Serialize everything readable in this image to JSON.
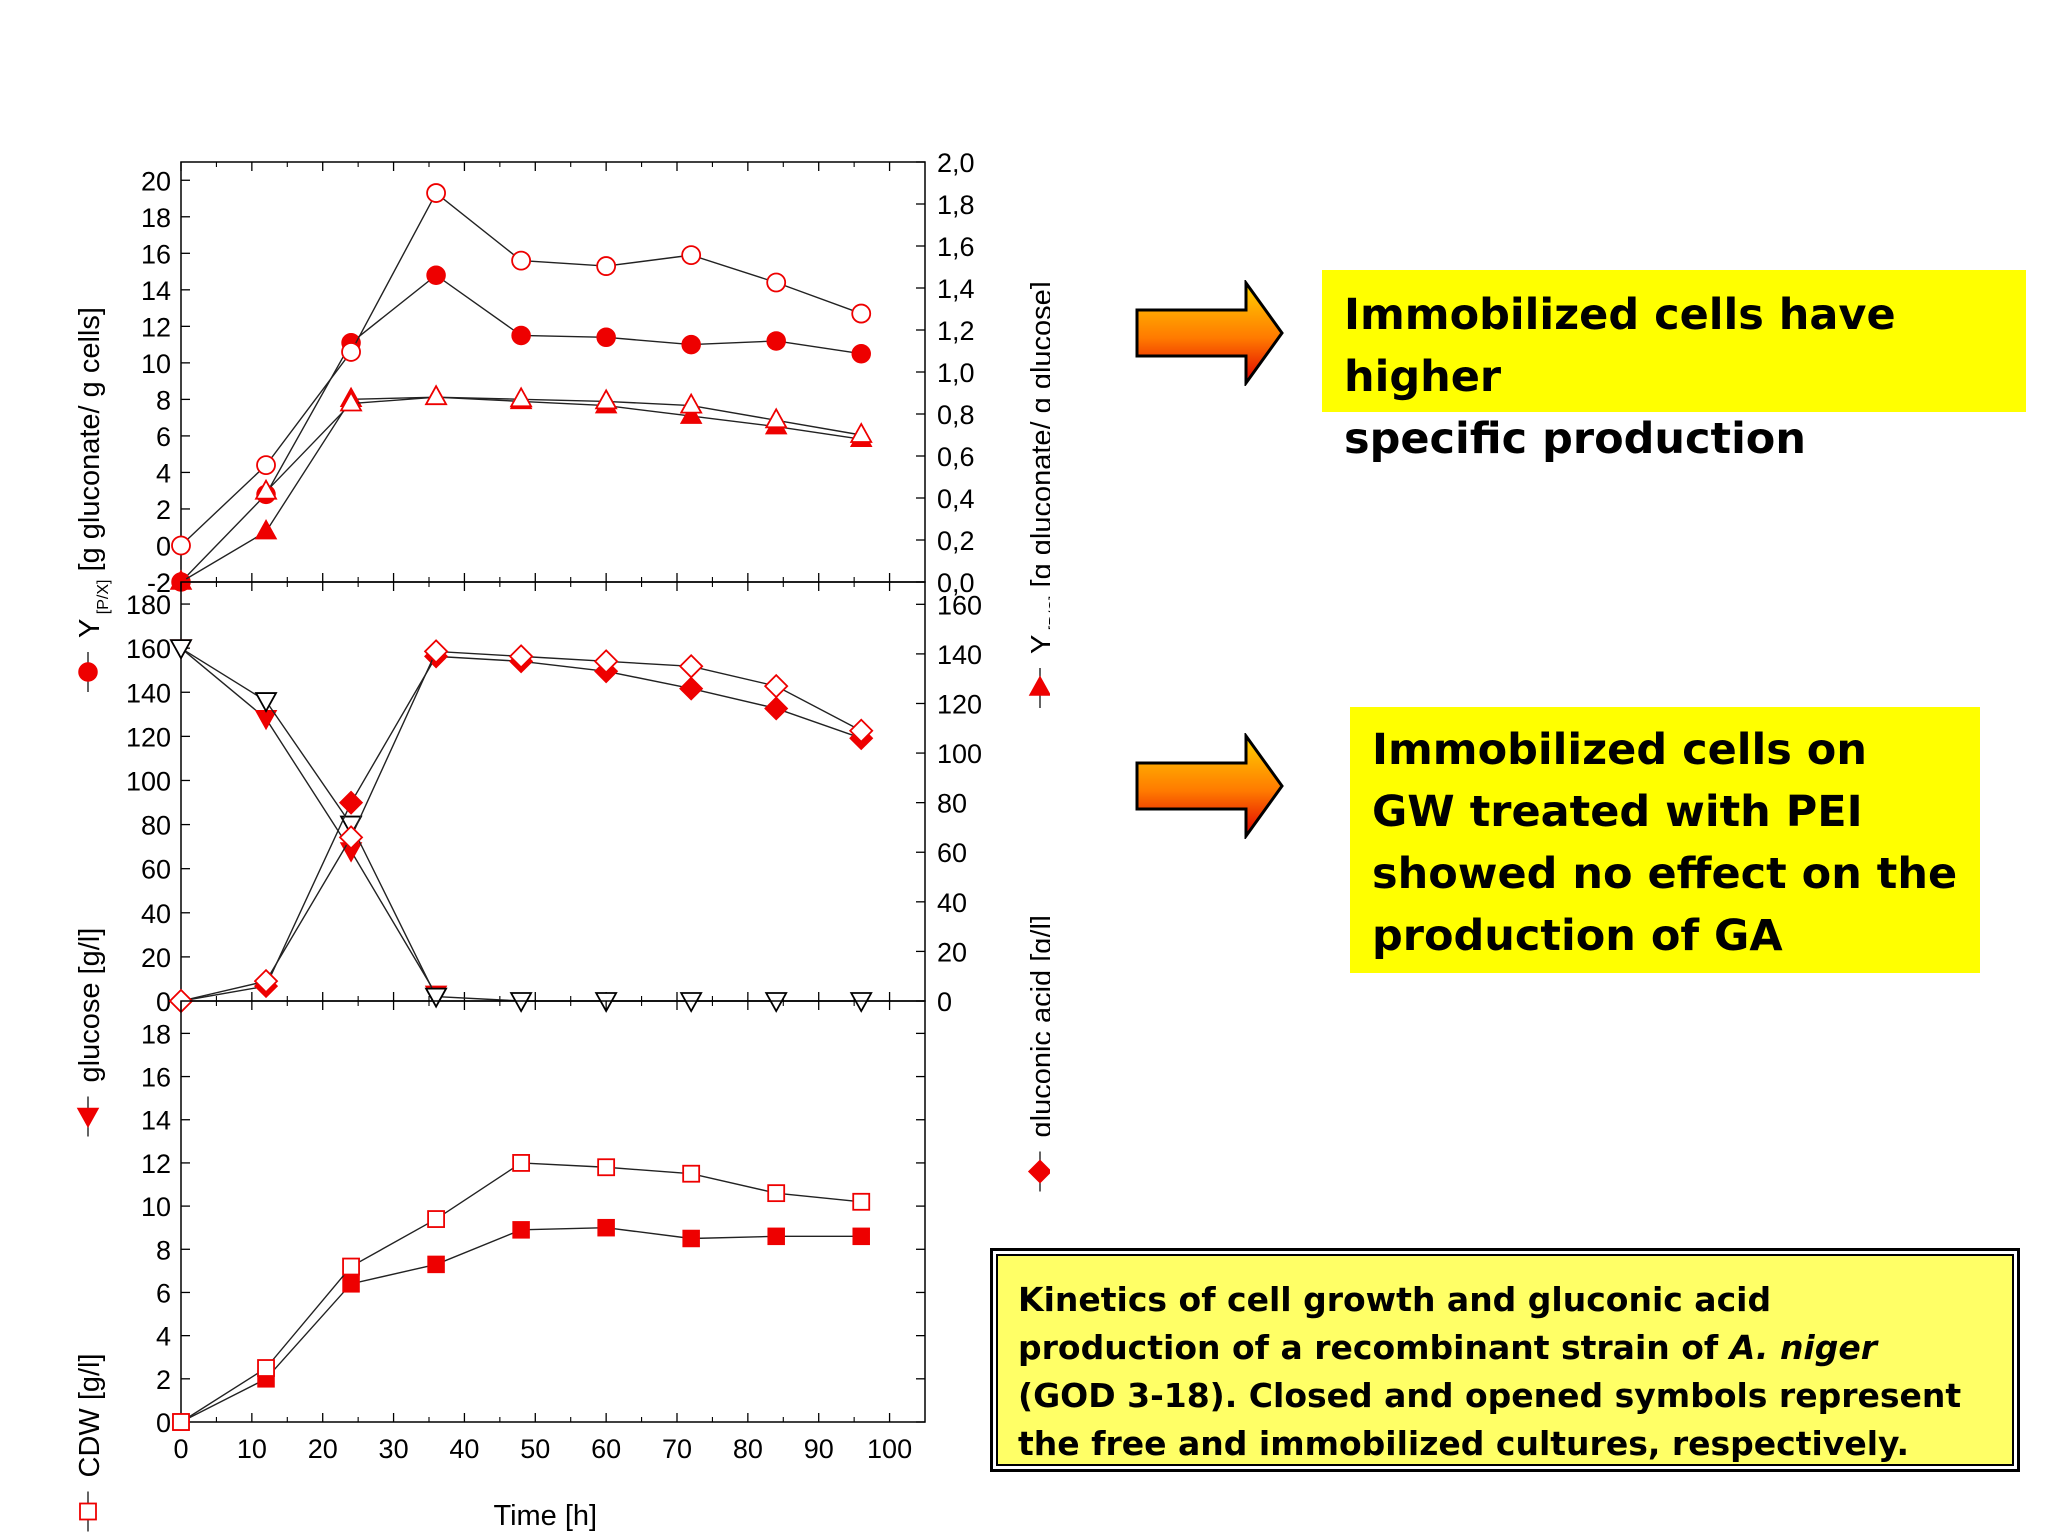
{
  "callouts": {
    "first_line1": "Immobilized cells have higher",
    "first_line2": "specific production",
    "second_line1": "Immobilized cells on",
    "second_line2": "GW treated with PEI",
    "second_line3": "showed no effect on the",
    "second_line4": "production of GA"
  },
  "caption": {
    "part1": "Kinetics of cell growth and gluconic acid",
    "part2": "production of a recombinant strain of ",
    "part2_italic": "A. niger",
    "part3": "(GOD 3-18). Closed and opened symbols represent",
    "part4": "the free and immobilized cultures, respectively."
  },
  "colors": {
    "accent": "#ee0000",
    "callout_bg": "#ffff00",
    "caption_bg": "#ffff66"
  },
  "chart_data": [
    {
      "type": "line",
      "panel": "top",
      "xlabel": "Time [h]",
      "xlim": [
        0,
        105
      ],
      "left_axis": {
        "label": "Y",
        "subscript": "[P/X]",
        "unit": "[g gluconate/ g cells]",
        "ylim": [
          -2,
          21
        ],
        "ticks": [
          "-2",
          "0",
          "2",
          "4",
          "6",
          "8",
          "10",
          "12",
          "14",
          "16",
          "18",
          "20"
        ]
      },
      "right_axis": {
        "label": "Y",
        "subscript": "[P/S]",
        "unit": "[g gluconate/ g glucose]",
        "ylim": [
          0.0,
          2.0
        ],
        "ticks": [
          "0,0",
          "0,2",
          "0,4",
          "0,6",
          "0,8",
          "1,0",
          "1,2",
          "1,4",
          "1,6",
          "1,8",
          "2,0"
        ]
      },
      "series": [
        {
          "name": "Y[P/X]",
          "axis": "left",
          "marker": "circle",
          "filled": true,
          "x": [
            0,
            12,
            24,
            36,
            48,
            60,
            72,
            84,
            96
          ],
          "y": [
            -2,
            2.8,
            11.1,
            14.8,
            11.5,
            11.4,
            11.0,
            11.2,
            10.5
          ]
        },
        {
          "name": "",
          "axis": "left",
          "marker": "circle",
          "filled": false,
          "x": [
            0,
            12,
            24,
            36,
            48,
            60,
            72,
            84,
            96
          ],
          "y": [
            0,
            4.4,
            10.6,
            19.3,
            15.6,
            15.3,
            15.9,
            14.4,
            12.7
          ]
        },
        {
          "name": "Y[P/S]",
          "axis": "right",
          "marker": "triangle-up",
          "filled": true,
          "x": [
            0,
            12,
            24,
            36,
            48,
            60,
            72,
            84,
            96
          ],
          "y": [
            0.0,
            0.24,
            0.87,
            0.88,
            0.86,
            0.84,
            0.79,
            0.74,
            0.68
          ]
        },
        {
          "name": "",
          "axis": "right",
          "marker": "triangle-up",
          "filled": false,
          "x": [
            12,
            24,
            36,
            48,
            60,
            72,
            84,
            96
          ],
          "y": [
            0.43,
            0.85,
            0.88,
            0.87,
            0.86,
            0.84,
            0.77,
            0.7
          ]
        }
      ]
    },
    {
      "type": "line",
      "panel": "middle",
      "xlabel": "Time [h]",
      "xlim": [
        0,
        105
      ],
      "left_axis": {
        "label": "glucose [g/l]",
        "ylim": [
          0,
          190
        ],
        "ticks": [
          "0",
          "20",
          "40",
          "60",
          "80",
          "100",
          "120",
          "140",
          "160",
          "180"
        ]
      },
      "right_axis": {
        "label": "gluconic acid [g/l]",
        "ylim": [
          0,
          169
        ],
        "ticks": [
          "0",
          "20",
          "40",
          "60",
          "80",
          "100",
          "120",
          "140",
          "160"
        ]
      },
      "series": [
        {
          "name": "glucose",
          "axis": "left",
          "marker": "triangle-down",
          "filled": true,
          "x": [
            0,
            12,
            24,
            36
          ],
          "y": [
            160,
            128,
            68,
            3
          ]
        },
        {
          "name": "",
          "axis": "left",
          "marker": "triangle-down",
          "filled": false,
          "x": [
            0,
            12,
            24,
            36,
            48,
            60,
            72,
            84,
            96
          ],
          "y": [
            160,
            136,
            80,
            2,
            0,
            0,
            0,
            0,
            0
          ]
        },
        {
          "name": "gluconic acid",
          "axis": "right",
          "marker": "diamond",
          "filled": true,
          "x": [
            0,
            12,
            24,
            36,
            48,
            60,
            72,
            84,
            96
          ],
          "y": [
            0,
            6,
            80,
            139,
            137,
            133,
            126,
            118,
            106
          ]
        },
        {
          "name": "",
          "axis": "right",
          "marker": "diamond",
          "filled": false,
          "x": [
            0,
            12,
            24,
            36,
            48,
            60,
            72,
            84,
            96
          ],
          "y": [
            0,
            8,
            66,
            141,
            139,
            137,
            135,
            127,
            109
          ]
        }
      ]
    },
    {
      "type": "line",
      "panel": "bottom",
      "xlabel": "Time [h]",
      "xlim": [
        0,
        105
      ],
      "xticks": [
        "0",
        "10",
        "20",
        "30",
        "40",
        "50",
        "60",
        "70",
        "80",
        "90",
        "100"
      ],
      "left_axis": {
        "label": "CDW [g/l]",
        "ylim": [
          0,
          19.5
        ],
        "ticks": [
          "0",
          "2",
          "4",
          "6",
          "8",
          "10",
          "12",
          "14",
          "16",
          "18"
        ]
      },
      "series": [
        {
          "name": "",
          "axis": "left",
          "marker": "square",
          "filled": true,
          "x": [
            0,
            12,
            24,
            36,
            48,
            60,
            72,
            84,
            96
          ],
          "y": [
            0,
            2.0,
            6.4,
            7.3,
            8.9,
            9.0,
            8.5,
            8.6,
            8.6
          ]
        },
        {
          "name": "CDW",
          "axis": "left",
          "marker": "square",
          "filled": false,
          "x": [
            0,
            12,
            24,
            36,
            48,
            60,
            72,
            84,
            96
          ],
          "y": [
            0,
            2.5,
            7.2,
            9.4,
            12.0,
            11.8,
            11.5,
            10.6,
            10.2
          ]
        }
      ]
    }
  ]
}
